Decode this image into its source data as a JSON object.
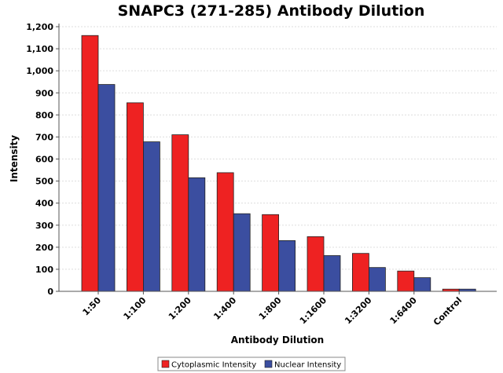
{
  "chart_data": {
    "type": "bar",
    "title": "SNAPC3 (271-285) Antibody Dilution",
    "xlabel": "Antibody Dilution",
    "ylabel": "Intensity",
    "ylim": [
      0,
      1200
    ],
    "yticks": [
      0,
      100,
      200,
      300,
      400,
      500,
      600,
      700,
      800,
      900,
      1000,
      1100,
      1200
    ],
    "ytick_labels": [
      "0",
      "100",
      "200",
      "300",
      "400",
      "500",
      "600",
      "700",
      "800",
      "900",
      "1,000",
      "1,100",
      "1,200"
    ],
    "grid": true,
    "legend_position": "bottom",
    "categories": [
      "1:50",
      "1:100",
      "1:200",
      "1:400",
      "1:800",
      "1:1600",
      "1:3200",
      "1:6400",
      "Control"
    ],
    "series": [
      {
        "name": "Cytoplasmic Intensity",
        "color": "#ee2222",
        "values": [
          1160,
          855,
          710,
          538,
          348,
          248,
          172,
          92,
          10
        ]
      },
      {
        "name": "Nuclear Intensity",
        "color": "#3b4ea0",
        "values": [
          938,
          678,
          515,
          352,
          230,
          162,
          108,
          62,
          10
        ]
      }
    ]
  }
}
